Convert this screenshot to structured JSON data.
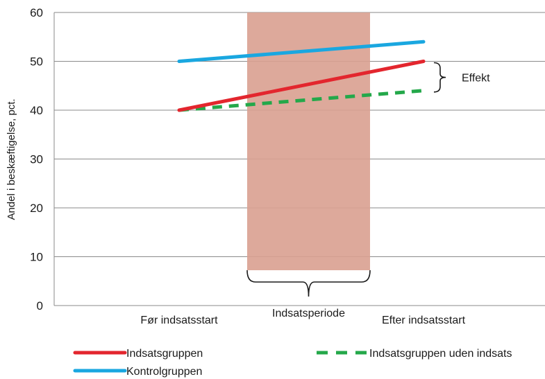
{
  "chart_data": {
    "type": "line",
    "ylabel": "Andel i beskæftigelse, pct.",
    "ylim": [
      0,
      60
    ],
    "yticks": [
      0,
      10,
      20,
      30,
      40,
      50,
      60
    ],
    "categories": [
      "Før indsatsstart",
      "Efter indsatsstart"
    ],
    "series": [
      {
        "name": "Indsatsgruppen",
        "values": [
          40,
          50
        ],
        "color": "#e3262e",
        "style": "solid"
      },
      {
        "name": "Kontrolgruppen",
        "values": [
          50,
          54
        ],
        "color": "#1aa7e0",
        "style": "solid"
      },
      {
        "name": "Indsatsgruppen uden indsats",
        "values": [
          40,
          44
        ],
        "color": "#24a84a",
        "style": "dashed"
      }
    ],
    "annotations": {
      "period_label": "Indsatsperiode",
      "period_color": "#d9a090",
      "effect_label": "Effekt"
    },
    "grid": true,
    "legend_position": "bottom"
  }
}
